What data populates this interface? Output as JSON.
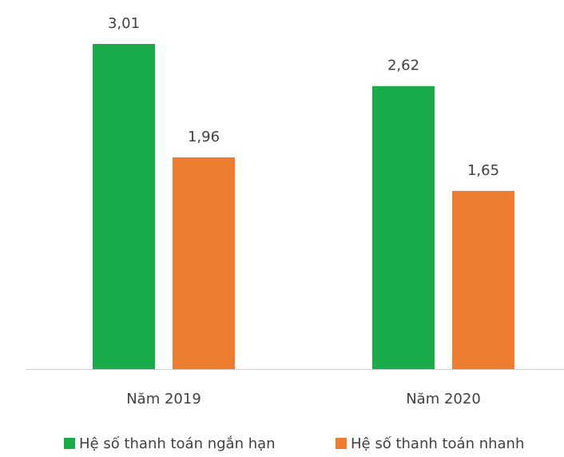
{
  "chart_data": {
    "type": "bar",
    "categories": [
      "Năm 2019",
      "Năm 2020"
    ],
    "series": [
      {
        "name": "Hệ số thanh toán ngắn hạn",
        "color": "#1aab4b",
        "values": [
          3.01,
          2.62
        ],
        "value_labels": [
          "3,01",
          "2,62"
        ]
      },
      {
        "name": "Hệ số thanh toán nhanh",
        "color": "#ed7d31",
        "values": [
          1.96,
          1.65
        ],
        "value_labels": [
          "1,96",
          "1,65"
        ]
      }
    ]
  }
}
